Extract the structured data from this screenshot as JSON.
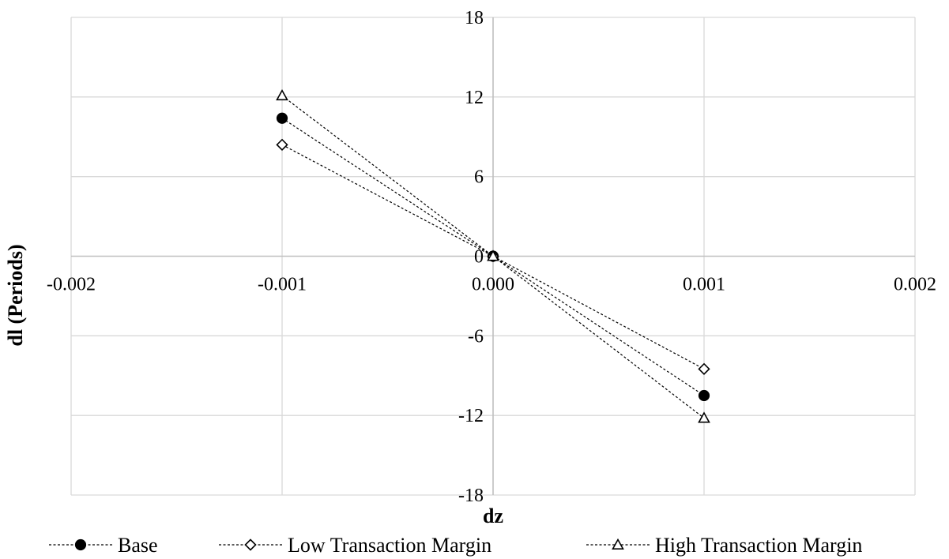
{
  "chart_data": {
    "type": "scatter",
    "xlabel": "dz",
    "ylabel": "dl (Periods)",
    "xlim": [
      -0.002,
      0.002
    ],
    "ylim": [
      -18,
      18
    ],
    "x_ticks": [
      -0.002,
      -0.001,
      0.0,
      0.001,
      0.002
    ],
    "x_tick_labels": [
      "-0.002",
      "-0.001",
      "0.000",
      "0.001",
      "0.002"
    ],
    "y_ticks": [
      -18,
      -12,
      -6,
      0,
      6,
      12,
      18
    ],
    "y_tick_labels": [
      "-18",
      "-12",
      "-6",
      "0",
      "6",
      "12",
      "18"
    ],
    "grid": true,
    "legend_position": "bottom",
    "line_style": "dashed",
    "series": [
      {
        "name": "Base",
        "marker": "filled-circle",
        "x": [
          -0.001,
          0.0,
          0.001
        ],
        "y": [
          10.4,
          0,
          -10.5
        ]
      },
      {
        "name": "Low Transaction Margin",
        "marker": "open-diamond",
        "x": [
          -0.001,
          0.0,
          0.001
        ],
        "y": [
          8.4,
          0,
          -8.5
        ]
      },
      {
        "name": "High Transaction Margin",
        "marker": "open-triangle",
        "x": [
          -0.001,
          0.0,
          0.001
        ],
        "y": [
          12.1,
          0,
          -12.2
        ]
      }
    ]
  },
  "colors": {
    "line": "#000000",
    "grid": "#d9d9d9",
    "axis": "#bfbfbf",
    "background": "#ffffff"
  }
}
